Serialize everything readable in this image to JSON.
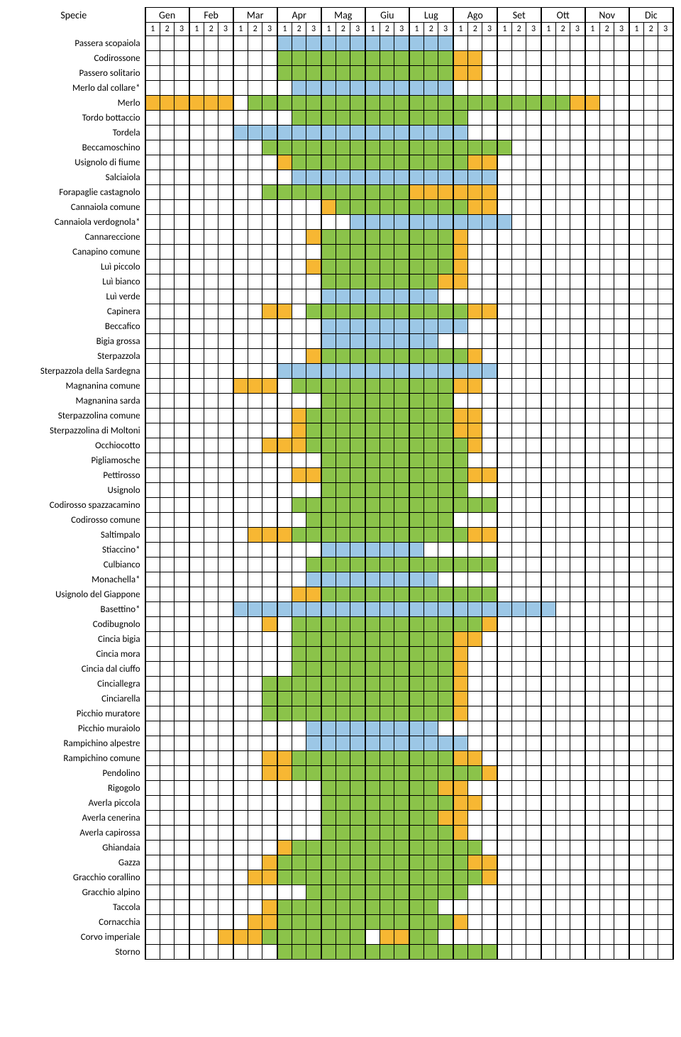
{
  "header": {
    "species_label": "Specie",
    "months": [
      "Gen",
      "Feb",
      "Mar",
      "Apr",
      "Mag",
      "Giu",
      "Lug",
      "Ago",
      "Set",
      "Ott",
      "Nov",
      "Dic"
    ],
    "subs": [
      "1",
      "2",
      "3"
    ]
  },
  "colors": {
    "green": "#8bc34a",
    "blue": "#9cc7e6",
    "orange": "#f7b733",
    "empty": "#ffffff"
  },
  "legend_map": {
    " ": "empty",
    "g": "green",
    "b": "blue",
    "o": "orange"
  },
  "rows": [
    {
      "name": "Passera scopaiola",
      "c": "         bbbbbbbbbbbb               "
    },
    {
      "name": "Codirossone",
      "c": "         ggggggggggggoo              "
    },
    {
      "name": "Passero solitario",
      "c": "         ggggggggggggoo              "
    },
    {
      "name": "Merlo dal collare*",
      "c": "          bbbbbbbbbbb                "
    },
    {
      "name": "Merlo",
      "c": "oooooo ggggggggggggggggggggggoo      "
    },
    {
      "name": "Tordo bottaccio",
      "c": "          gggggggggggg               "
    },
    {
      "name": "Tordela",
      "c": "      bbbbbbbbbbbbbbbb               "
    },
    {
      "name": "Beccamoschino",
      "c": "        ggggggggggggggggg            "
    },
    {
      "name": "Usignolo di fiume",
      "c": "         oggggggggggggoo             "
    },
    {
      "name": "Salciaiola",
      "c": "          bbbbbbbbbbbbbb             "
    },
    {
      "name": "Forapaglie castagnolo",
      "c": "        ggggggggggoooooo             "
    },
    {
      "name": "Cannaiola comune",
      "c": "            ogggggggggoo             "
    },
    {
      "name": "Cannaiola verdognola*",
      "c": "              bbbbbbbbbbb            "
    },
    {
      "name": "Cannareccione",
      "c": "           ogggggggggo               "
    },
    {
      "name": "Canapino comune",
      "c": "            gggggggggo               "
    },
    {
      "name": "Luì piccolo",
      "c": "           ogggggggggo               "
    },
    {
      "name": "Luì bianco",
      "c": "            ggggggggoo               "
    },
    {
      "name": "Luì verde",
      "c": "            bbbbbbbb                 "
    },
    {
      "name": "Capinera",
      "c": "        oo gggggggggggoo             "
    },
    {
      "name": "Beccafico",
      "c": "            bbbbbbbbbb               "
    },
    {
      "name": "Bigia grossa",
      "c": "            bbbbbbbb                 "
    },
    {
      "name": "Sterpazzola",
      "c": "           oggggggggggo              "
    },
    {
      "name": "Sterpazzola della Sardegna",
      "c": "         bbbbbbbbbbbbbbb             "
    },
    {
      "name": "Magnanina comune",
      "c": "      ooo gggggggggggoo              "
    },
    {
      "name": "Magnanina sarda",
      "c": "            ggggggggg                "
    },
    {
      "name": "Sterpazzolina comune",
      "c": "          oggggggggggoo              "
    },
    {
      "name": "Sterpazzolina di Moltoni",
      "c": "          oggggggggggoo              "
    },
    {
      "name": "Occhiocotto",
      "c": "        ooogggggggggggo              "
    },
    {
      "name": "Pigliamosche",
      "c": "            gggggggggg               "
    },
    {
      "name": "Pettirosso",
      "c": "          ooggggggggggoo             "
    },
    {
      "name": "Usignolo",
      "c": "            gggggggggg               "
    },
    {
      "name": "Codirosso spazzacamino",
      "c": "          gggggggggggggg             "
    },
    {
      "name": "Codirosso comune",
      "c": "           gggggggggg                "
    },
    {
      "name": "Saltimpalo",
      "c": "       oooggggggggggggoo             "
    },
    {
      "name": "Stiaccino*",
      "c": "            bbbbbbb                  "
    },
    {
      "name": "Culbianco",
      "c": "           ggggggggggggg             "
    },
    {
      "name": "Monachella*",
      "c": "           bbbbbbbbb                 "
    },
    {
      "name": "Usignolo del Giappone",
      "c": "          oogggggggggggg             "
    },
    {
      "name": "Basettino*",
      "c": "      bbbbbbbbbbbbbbbbbbbbbb         "
    },
    {
      "name": "Codibugnolo",
      "c": "        o gggggggggggggo             "
    },
    {
      "name": "Cincia bigia",
      "c": "          gggggggggggoo              "
    },
    {
      "name": "Cincia mora",
      "c": "          gggggggggggo               "
    },
    {
      "name": "Cincia dal ciuffo",
      "c": "          gggggggggggo               "
    },
    {
      "name": "Cinciallegra",
      "c": "        gggggggggggggo               "
    },
    {
      "name": "Cinciarella",
      "c": "        gggggggggggggo               "
    },
    {
      "name": "Picchio muratore",
      "c": "        gggggggggggggo               "
    },
    {
      "name": "Picchio muraiolo",
      "c": "           bbbbbbbbb                 "
    },
    {
      "name": "Rampichino alpestre",
      "c": "           bbbbbbbbbbb               "
    },
    {
      "name": "Rampichino comune",
      "c": "        oogggggggggggoo              "
    },
    {
      "name": "Pendolino",
      "c": "        oogggggggggggggo             "
    },
    {
      "name": "Rigogolo",
      "c": "            ggggggggoo               "
    },
    {
      "name": "Averla piccola",
      "c": "            gggggggggoo              "
    },
    {
      "name": "Averla cenerina",
      "c": "            ggggggggoo               "
    },
    {
      "name": "Averla capirossa",
      "c": "            gggggggggo               "
    },
    {
      "name": "Ghiandaia",
      "c": "         oggggggggggggg              "
    },
    {
      "name": "Gazza",
      "c": "        ogggggggggggggoo             "
    },
    {
      "name": "Gracchio corallino",
      "c": "       ooggggggggggggggo             "
    },
    {
      "name": "Gracchio alpino",
      "c": "           ggggggggggg               "
    },
    {
      "name": "Taccola",
      "c": "        oggggggggggg                 "
    },
    {
      "name": "Cornacchia",
      "c": "       ooggggggggggggo               "
    },
    {
      "name": "Corvo imperiale",
      "c": "     oooggggggg oogg                 "
    },
    {
      "name": "Storno",
      "c": "         ggggggggggggggg             "
    }
  ]
}
